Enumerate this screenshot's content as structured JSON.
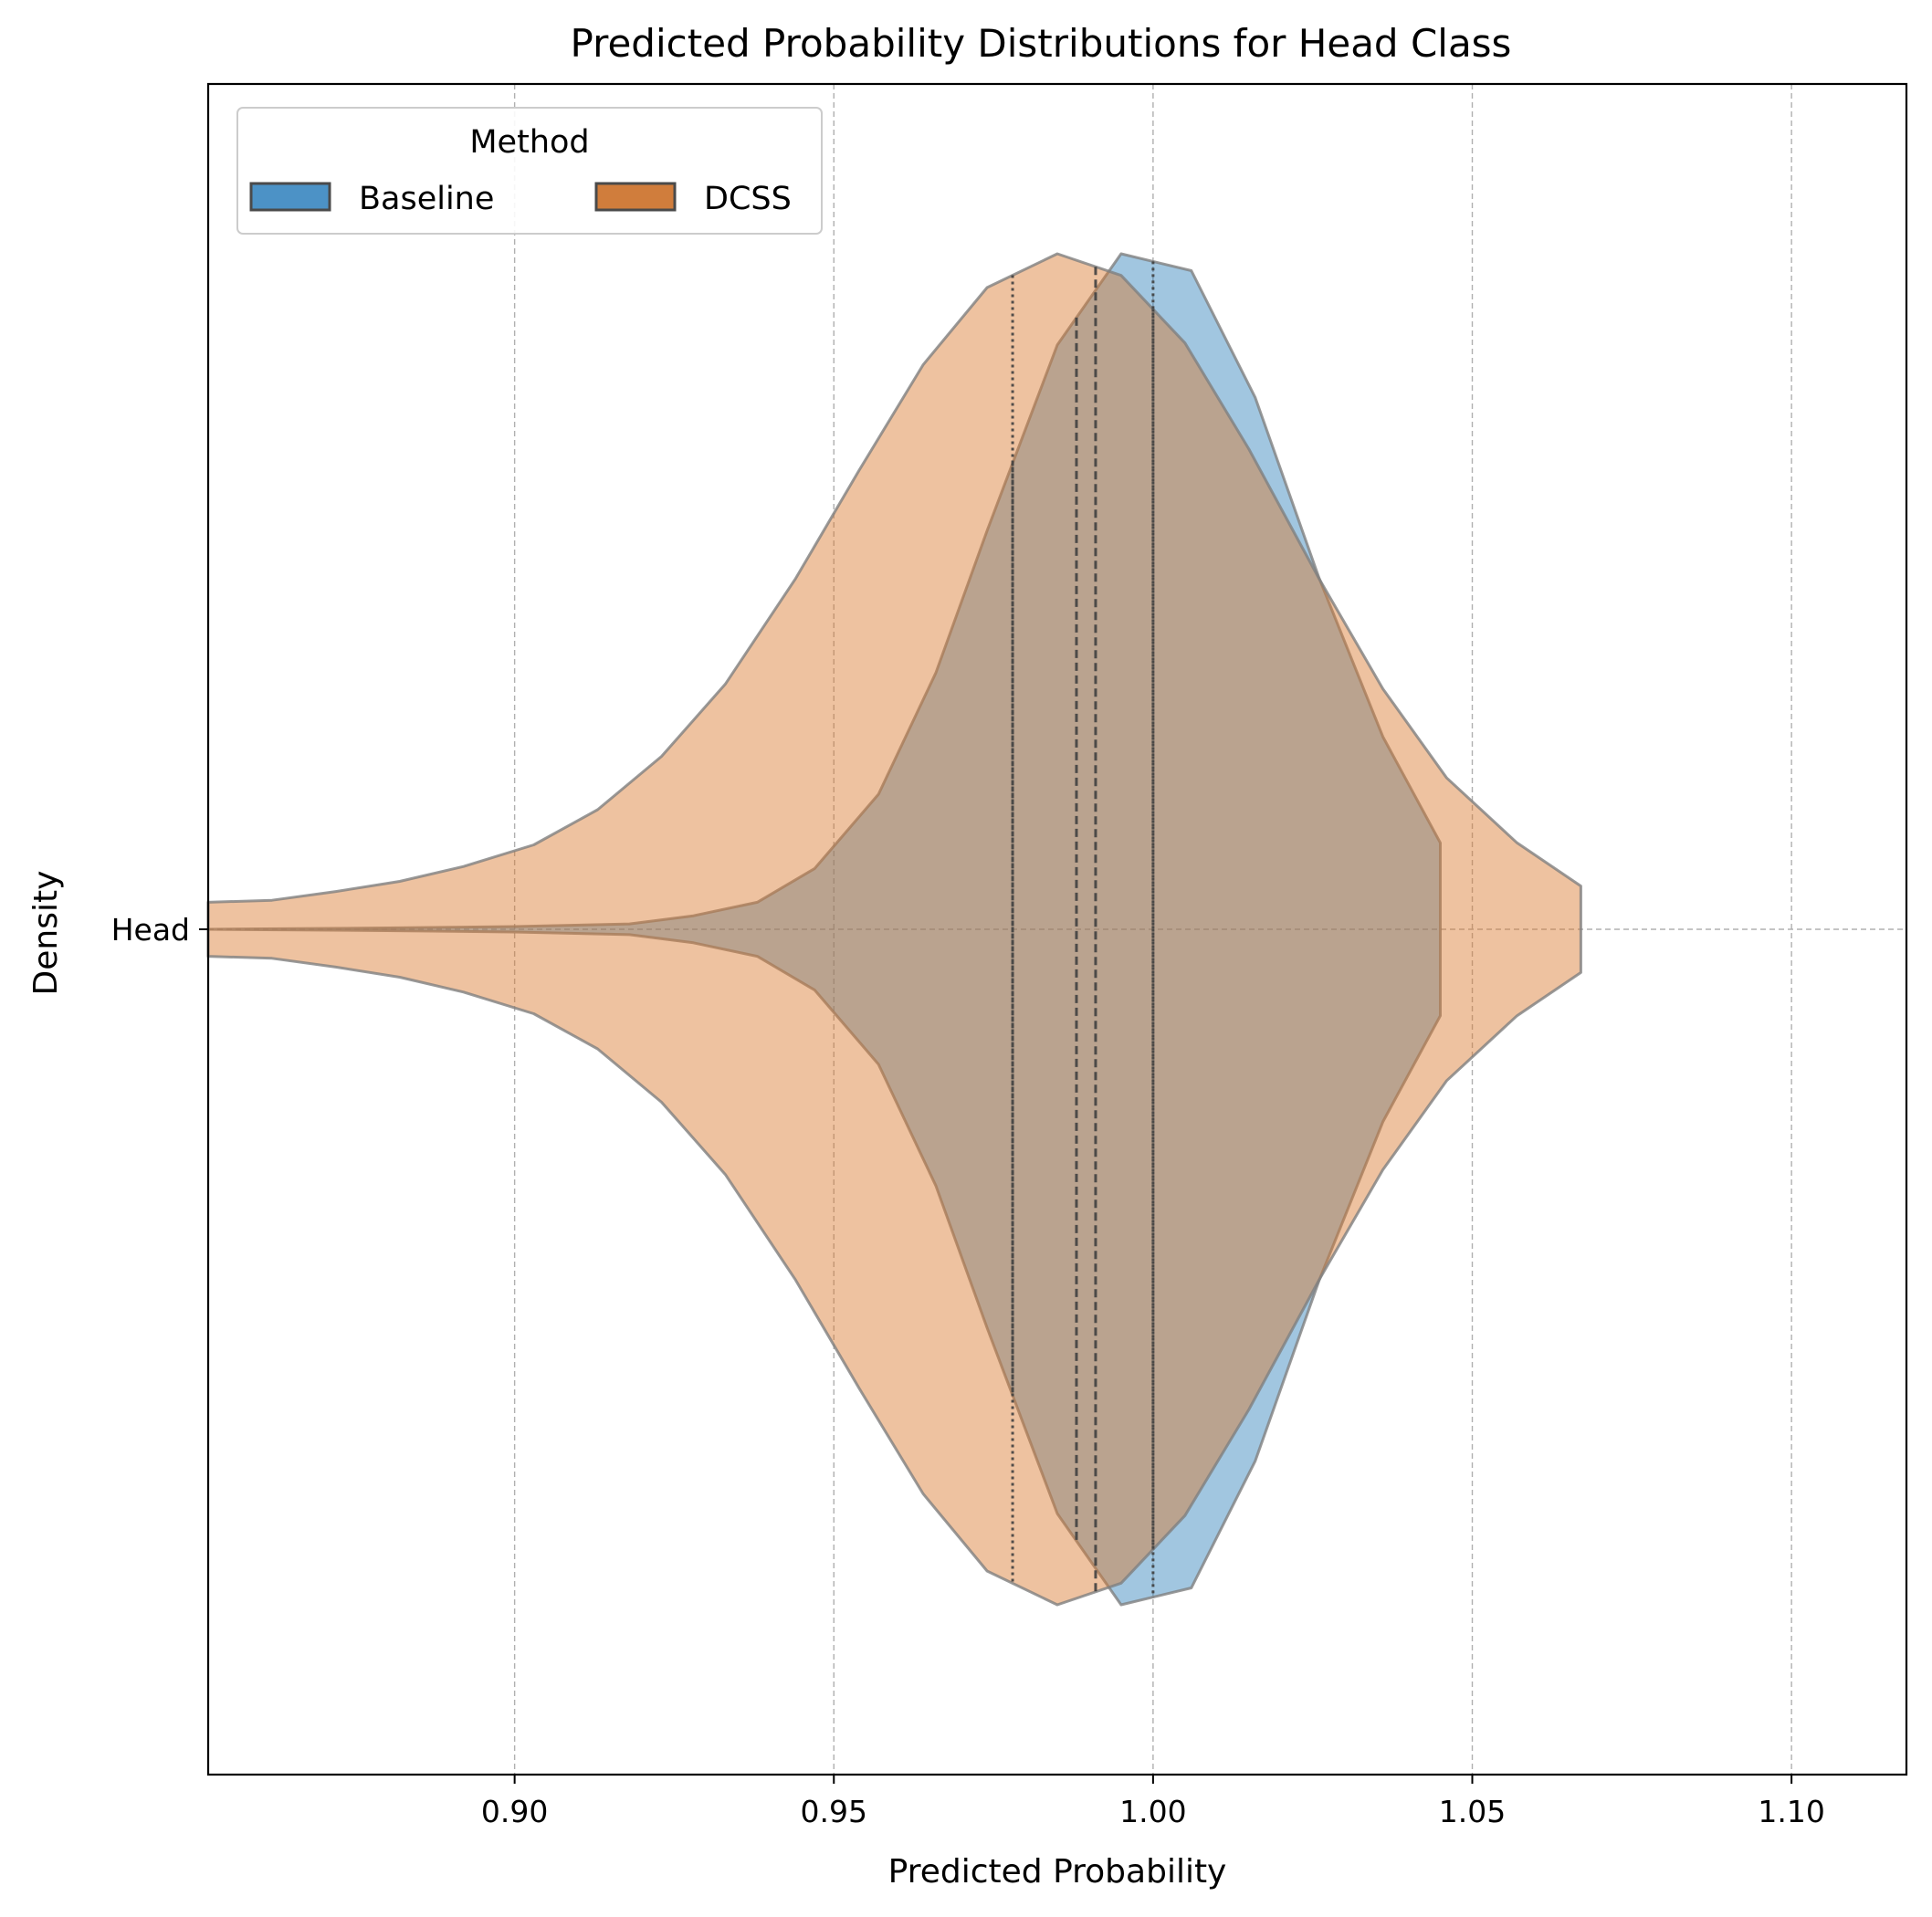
{
  "chart_data": {
    "type": "violin",
    "orientation": "horizontal",
    "title": "Predicted Probability Distributions for Head Class",
    "xlabel": "Predicted Probability",
    "ylabel": "Density",
    "category": "Head",
    "xlim": [
      0.852,
      1.118
    ],
    "xticks": [
      0.9,
      0.95,
      1.0,
      1.05,
      1.1
    ],
    "xtick_labels": [
      "0.90",
      "0.95",
      "1.00",
      "1.05",
      "1.10"
    ],
    "grid": true,
    "legend": {
      "title": "Method",
      "placement": "upper-left",
      "entries": [
        "Baseline",
        "DCSS"
      ]
    },
    "series": [
      {
        "name": "Baseline",
        "color": "#1f77b4",
        "profile": [
          [
            0.852,
            0.0
          ],
          [
            0.88,
            0.002
          ],
          [
            0.9,
            0.004
          ],
          [
            0.918,
            0.008
          ],
          [
            0.928,
            0.02
          ],
          [
            0.938,
            0.04
          ],
          [
            0.947,
            0.09
          ],
          [
            0.957,
            0.2
          ],
          [
            0.966,
            0.38
          ],
          [
            0.974,
            0.59
          ],
          [
            0.985,
            0.865
          ],
          [
            0.995,
            1.0
          ],
          [
            1.006,
            0.975
          ],
          [
            1.016,
            0.787
          ],
          [
            1.026,
            0.52
          ],
          [
            1.036,
            0.285
          ],
          [
            1.045,
            0.128
          ]
        ],
        "quartiles": [
          0.978,
          0.988,
          1.0
        ]
      },
      {
        "name": "DCSS",
        "color": "#d9782d",
        "profile": [
          [
            0.852,
            0.04
          ],
          [
            0.862,
            0.043
          ],
          [
            0.872,
            0.056
          ],
          [
            0.882,
            0.071
          ],
          [
            0.892,
            0.093
          ],
          [
            0.903,
            0.125
          ],
          [
            0.913,
            0.177
          ],
          [
            0.923,
            0.256
          ],
          [
            0.933,
            0.363
          ],
          [
            0.944,
            0.519
          ],
          [
            0.954,
            0.68
          ],
          [
            0.964,
            0.836
          ],
          [
            0.974,
            0.95
          ],
          [
            0.985,
            1.0
          ],
          [
            0.995,
            0.968
          ],
          [
            1.005,
            0.868
          ],
          [
            1.015,
            0.711
          ],
          [
            1.026,
            0.519
          ],
          [
            1.036,
            0.356
          ],
          [
            1.046,
            0.224
          ],
          [
            1.057,
            0.128
          ],
          [
            1.067,
            0.064
          ]
        ],
        "quartiles": [
          0.978,
          0.991,
          1.0
        ]
      }
    ]
  }
}
